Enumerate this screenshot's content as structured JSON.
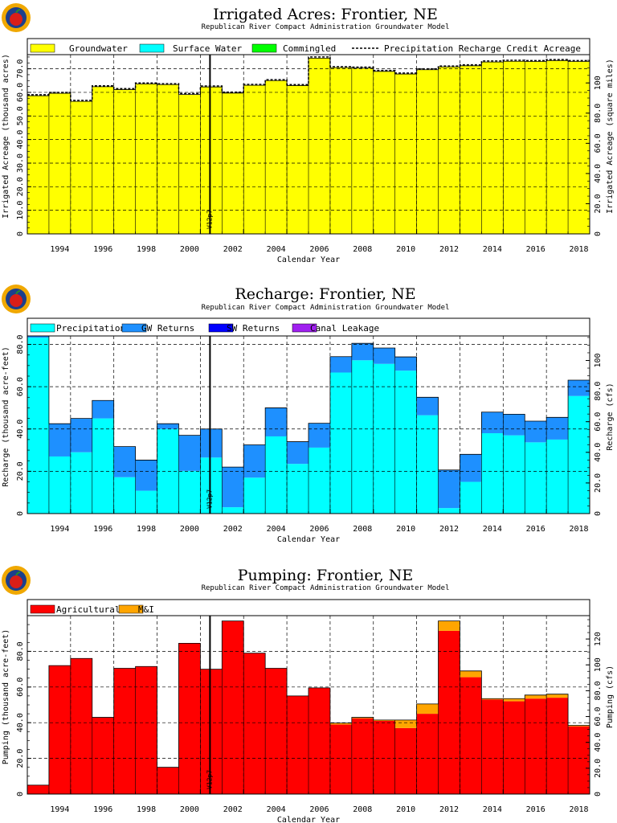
{
  "colors": {
    "groundwater": "#ffff00",
    "surface_water": "#00ffff",
    "commingled": "#00ff00",
    "precipitation": "#00ffff",
    "gw_returns": "#1e90ff",
    "sw_returns": "#0000ff",
    "canal_leakage": "#a020f0",
    "agricultural": "#ff0000",
    "mi": "#ffa500",
    "logo_orange": "#f0a800",
    "logo_blue": "#1c3f8c",
    "logo_red": "#d91e18"
  },
  "marker_label": "V12p7",
  "logo_icon": "apple-logo-icon",
  "chart_data": [
    {
      "type": "bar",
      "title": "Irrigated Acres: Frontier, NE",
      "subtitle": "Republican River Compact Administration Groundwater Model",
      "xlabel": "Calendar Year",
      "ylabel": "Irrigated Acreage (thousand acres)",
      "ylabel_right": "Irrigated Acreage (square miles)",
      "xlim": [
        1992.5,
        2018.5
      ],
      "ylim": [
        0,
        76
      ],
      "yticks": [
        "0",
        "10.0",
        "20.0",
        "30.0",
        "40.0",
        "50.0",
        "60.0",
        "70.0"
      ],
      "yticks_right": [
        "0",
        "20.0",
        "40.0",
        "60.0",
        "80.0",
        "100"
      ],
      "xticks": [
        "1994",
        "1996",
        "1998",
        "2000",
        "2002",
        "2004",
        "2006",
        "2008",
        "2010",
        "2012",
        "2014",
        "2016",
        "2018"
      ],
      "legend": [
        "Groundwater",
        "Surface Water",
        "Commingled",
        "Precipitation Recharge Credit Acreage"
      ],
      "years": [
        1993,
        1994,
        1995,
        1996,
        1997,
        1998,
        1999,
        2000,
        2001,
        2002,
        2003,
        2004,
        2005,
        2006,
        2007,
        2008,
        2009,
        2010,
        2011,
        2012,
        2013,
        2014,
        2015,
        2016,
        2017,
        2018
      ],
      "series": [
        {
          "name": "Groundwater",
          "values": [
            58.6,
            59.6,
            56.2,
            62.4,
            61.2,
            63.6,
            63.3,
            59.1,
            62.3,
            59.7,
            63.0,
            65.0,
            62.9,
            74.5,
            70.5,
            70.3,
            68.9,
            67.8,
            69.6,
            70.8,
            71.3,
            72.9,
            73.2,
            73.1,
            73.5,
            73.1
          ]
        },
        {
          "name": "Surface Water",
          "values": [
            0,
            0,
            0,
            0,
            0,
            0,
            0,
            0,
            0,
            0,
            0,
            0,
            0,
            0,
            0,
            0,
            0,
            0,
            0,
            0,
            0,
            0,
            0,
            0,
            0,
            0
          ]
        },
        {
          "name": "Commingled",
          "values": [
            0,
            0,
            0,
            0,
            0,
            0,
            0,
            0,
            0,
            0,
            0,
            0,
            0,
            0,
            0,
            0,
            0,
            0,
            0,
            0,
            0,
            0,
            0,
            0,
            0,
            0
          ]
        },
        {
          "name": "Precipitation Recharge Credit Acreage",
          "values": [
            59.0,
            60.0,
            56.6,
            62.8,
            61.6,
            64.0,
            63.7,
            59.5,
            62.7,
            60.1,
            63.4,
            65.4,
            63.3,
            75.0,
            70.9,
            70.7,
            69.3,
            68.2,
            70.0,
            71.2,
            71.7,
            73.3,
            73.6,
            73.5,
            73.9,
            73.5
          ]
        }
      ]
    },
    {
      "type": "bar",
      "title": "Recharge: Frontier, NE",
      "subtitle": "Republican River Compact Administration Groundwater Model",
      "xlabel": "Calendar Year",
      "ylabel": "Recharge (thousand acre-feet)",
      "ylabel_right": "Recharge (cfs)",
      "xlim": [
        1992.5,
        2018.5
      ],
      "ylim": [
        0,
        84
      ],
      "yticks": [
        "0",
        "20.0",
        "40.0",
        "60.0",
        "80.0"
      ],
      "yticks_right": [
        "0",
        "20.0",
        "40.0",
        "60.0",
        "80.0",
        "100"
      ],
      "xticks": [
        "1994",
        "1996",
        "1998",
        "2000",
        "2002",
        "2004",
        "2006",
        "2008",
        "2010",
        "2012",
        "2014",
        "2016",
        "2018"
      ],
      "legend": [
        "Precipitation",
        "GW Returns",
        "SW Returns",
        "Canal Leakage"
      ],
      "years": [
        1993,
        1994,
        1995,
        1996,
        1997,
        1998,
        1999,
        2000,
        2001,
        2002,
        2003,
        2004,
        2005,
        2006,
        2007,
        2008,
        2009,
        2010,
        2011,
        2012,
        2013,
        2014,
        2015,
        2016,
        2017,
        2018
      ],
      "series": [
        {
          "name": "Precipitation",
          "values": [
            83.2,
            27.0,
            29.0,
            45.0,
            17.2,
            10.8,
            40.0,
            20.2,
            26.5,
            3.0,
            17.0,
            36.5,
            23.5,
            31.2,
            66.7,
            72.5,
            70.8,
            67.6,
            46.5,
            2.6,
            15.0,
            38.0,
            37.0,
            33.7,
            35.0,
            55.6
          ]
        },
        {
          "name": "GW Returns",
          "values": [
            0.8,
            15.5,
            16.0,
            8.5,
            14.5,
            14.5,
            2.5,
            16.8,
            13.5,
            19.0,
            15.5,
            13.5,
            10.5,
            11.5,
            7.5,
            8.0,
            7.5,
            6.5,
            8.5,
            18.0,
            13.0,
            10.0,
            10.0,
            10.0,
            10.5,
            7.5
          ]
        },
        {
          "name": "SW Returns",
          "values": [
            0,
            0,
            0,
            0,
            0,
            0,
            0,
            0,
            0,
            0,
            0,
            0,
            0,
            0,
            0,
            0,
            0,
            0,
            0,
            0,
            0,
            0,
            0,
            0,
            0,
            0
          ]
        },
        {
          "name": "Canal Leakage",
          "values": [
            0,
            0,
            0,
            0,
            0,
            0,
            0,
            0,
            0,
            0,
            0,
            0,
            0,
            0,
            0,
            0,
            0,
            0,
            0,
            0,
            0,
            0,
            0,
            0,
            0,
            0
          ]
        }
      ]
    },
    {
      "type": "bar",
      "title": "Pumping: Frontier, NE",
      "subtitle": "Republican River Compact Administration Groundwater Model",
      "xlabel": "Calendar Year",
      "ylabel": "Pumping (thousand acre-feet)",
      "ylabel_right": "Pumping (cfs)",
      "xlim": [
        1992.5,
        2018.5
      ],
      "ylim": [
        0,
        100
      ],
      "yticks": [
        "0",
        "20.0",
        "40.0",
        "60.0",
        "80.0"
      ],
      "yticks_right": [
        "0",
        "20.0",
        "40.0",
        "60.0",
        "80.0",
        "100",
        "120"
      ],
      "xticks": [
        "1994",
        "1996",
        "1998",
        "2000",
        "2002",
        "2004",
        "2006",
        "2008",
        "2010",
        "2012",
        "2014",
        "2016",
        "2018"
      ],
      "legend": [
        "Agricultural",
        "M&I"
      ],
      "years": [
        1993,
        1994,
        1995,
        1996,
        1997,
        1998,
        1999,
        2000,
        2001,
        2002,
        2003,
        2004,
        2005,
        2006,
        2007,
        2008,
        2009,
        2010,
        2011,
        2012,
        2013,
        2014,
        2015,
        2016,
        2017,
        2018
      ],
      "series": [
        {
          "name": "Agricultural",
          "values": [
            5.0,
            72.0,
            76.0,
            43.0,
            70.5,
            71.5,
            15.0,
            84.5,
            70.0,
            97.0,
            79.0,
            70.5,
            55.0,
            59.5,
            39.0,
            42.5,
            41.0,
            37.0,
            45.0,
            91.5,
            65.5,
            53.0,
            52.0,
            53.5,
            54.0,
            38.0
          ]
        },
        {
          "name": "M&I",
          "values": [
            0,
            0,
            0,
            0,
            0,
            0,
            0,
            0,
            0,
            0,
            0,
            0,
            0,
            0,
            0.8,
            0.5,
            0.5,
            4.5,
            5.5,
            5.5,
            3.5,
            0.5,
            1.5,
            2.0,
            2.0,
            0.5
          ]
        }
      ]
    }
  ]
}
